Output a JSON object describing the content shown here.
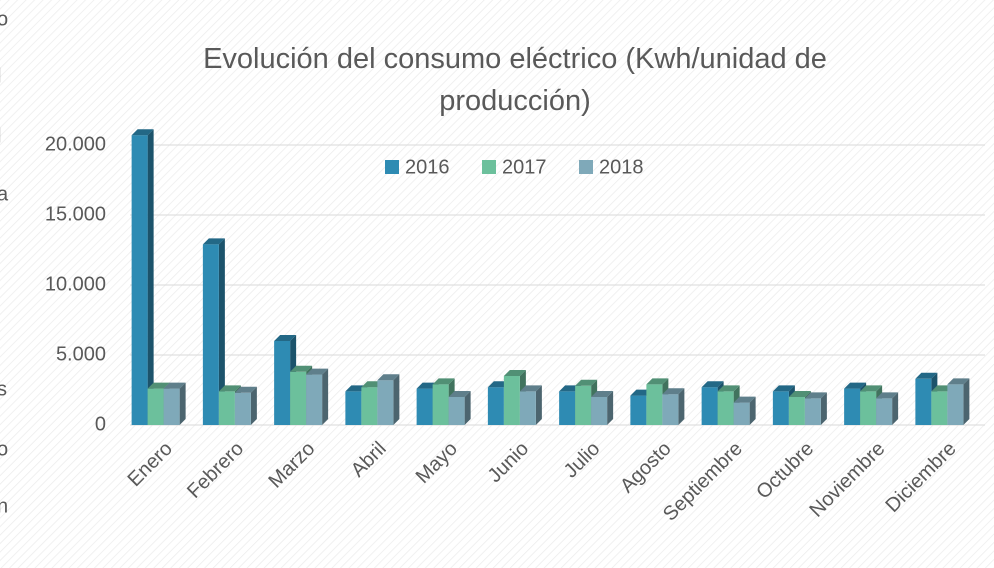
{
  "margin_text": [
    "o",
    "l",
    "l",
    "a",
    "s",
    "o",
    "n"
  ],
  "chart_data": {
    "type": "bar3d",
    "title": "Evolución del consumo eléctrico (Kwh/unidad de producción)",
    "categories": [
      "Enero",
      "Febrero",
      "Marzo",
      "Abril",
      "Mayo",
      "Junio",
      "Julio",
      "Agosto",
      "Septiembre",
      "Octubre",
      "Noviembre",
      "Diciembre"
    ],
    "series": [
      {
        "name": "2016",
        "color": "#2e8bb3",
        "values": [
          20700,
          12900,
          6000,
          2400,
          2600,
          2700,
          2400,
          2100,
          2700,
          2400,
          2600,
          3300
        ]
      },
      {
        "name": "2017",
        "color": "#6cc09c",
        "values": [
          2600,
          2400,
          3800,
          2700,
          2900,
          3500,
          2800,
          2900,
          2400,
          2000,
          2400,
          2400
        ]
      },
      {
        "name": "2018",
        "color": "#7fa9b9",
        "values": [
          2600,
          2300,
          3600,
          3200,
          2000,
          2400,
          2000,
          2200,
          1600,
          1900,
          1900,
          2900
        ]
      }
    ],
    "ylim": [
      0,
      20000
    ],
    "yticks": [
      0,
      {
        "value": 5000,
        "label": "5.000"
      },
      {
        "value": 10000,
        "label": "10.000"
      },
      {
        "value": 15000,
        "label": "15.000"
      },
      {
        "value": 20000,
        "label": "20.000"
      }
    ],
    "grid": true,
    "legend": "top"
  }
}
